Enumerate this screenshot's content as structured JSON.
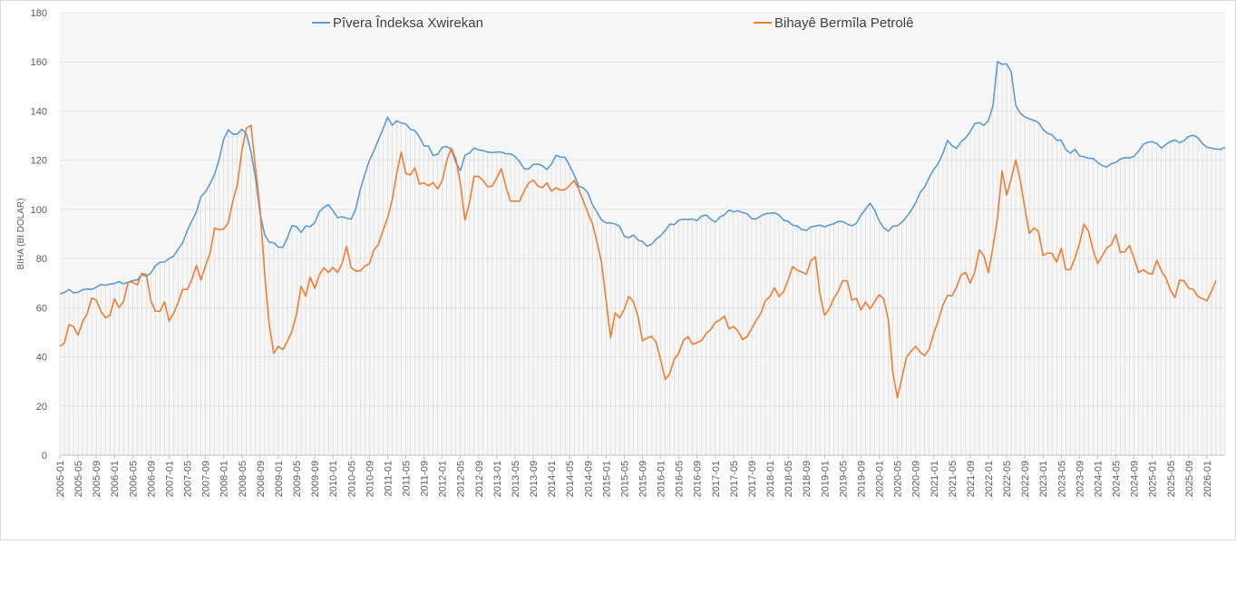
{
  "chart_data": {
    "type": "line",
    "ylabel": "BIHA (BI DOLAR)",
    "ylim": [
      0,
      180
    ],
    "yticks": [
      0,
      20,
      40,
      60,
      80,
      100,
      120,
      140,
      160,
      180
    ],
    "x_tick_labels": [
      "2005-01",
      "2005-05",
      "2005-09",
      "2006-01",
      "2006-05",
      "2006-09",
      "2007-01",
      "2007-05",
      "2007-09",
      "2008-01",
      "2008-05",
      "2008-09",
      "2009-01",
      "2009-05",
      "2009-09",
      "2010-01",
      "2010-05",
      "2010-09",
      "2011-01",
      "2011-05",
      "2011-09",
      "2012-01",
      "2012-05",
      "2012-09",
      "2013-01",
      "2013-05",
      "2013-09",
      "2014-01",
      "2014-05",
      "2014-09",
      "2015-01",
      "2015-05",
      "2015-09",
      "2016-01",
      "2016-05",
      "2016-09",
      "2017-01",
      "2017-05",
      "2017-09",
      "2018-01",
      "2018-05",
      "2018-09",
      "2019-01",
      "2019-05",
      "2019-09",
      "2020-01",
      "2020-05",
      "2020-09",
      "2021-01",
      "2021-05",
      "2021-09",
      "2022-01",
      "2022-05",
      "2022-09",
      "2023-01",
      "2023-05",
      "2023-09",
      "2024-01",
      "2024-05",
      "2024-09",
      "2025-01",
      "2025-05",
      "2025-09",
      "2026-01"
    ],
    "x_start": "2005-01",
    "x_step": "1 month",
    "legend_position": "top",
    "series": [
      {
        "name": "Pîvera Îndeksa Xwirekan",
        "color": "#5b9bd5",
        "values": [
          65.5,
          66.2,
          67.4,
          66.0,
          66.3,
          67.3,
          67.6,
          67.4,
          68.3,
          69.4,
          69.1,
          69.6,
          69.8,
          70.6,
          69.7,
          70.4,
          71.0,
          71.3,
          73.4,
          72.8,
          74.1,
          77.1,
          78.5,
          78.6,
          80.0,
          81.0,
          83.8,
          86.4,
          91.4,
          95.3,
          98.9,
          105.2,
          107.2,
          110.4,
          114.3,
          120.4,
          128.5,
          132.4,
          130.6,
          130.6,
          132.6,
          130.7,
          123.3,
          112.6,
          98.2,
          89.7,
          86.6,
          86.5,
          84.6,
          84.6,
          88.5,
          93.4,
          93.0,
          90.6,
          93.2,
          93.0,
          94.6,
          99.0,
          100.8,
          101.9,
          99.5,
          96.6,
          97.0,
          96.4,
          96.0,
          100.1,
          108.0,
          114.2,
          119.9,
          123.8,
          128.3,
          132.7,
          137.5,
          134.2,
          136.1,
          135.1,
          134.8,
          132.6,
          132.0,
          129.4,
          125.9,
          125.7,
          121.9,
          122.4,
          125.2,
          125.6,
          124.3,
          119.0,
          115.8,
          122.0,
          122.9,
          125.0,
          124.2,
          123.9,
          123.3,
          123.1,
          123.3,
          123.3,
          122.6,
          122.6,
          121.5,
          119.4,
          116.5,
          116.4,
          118.3,
          118.4,
          117.8,
          116.2,
          118.5,
          122.0,
          121.3,
          121.1,
          117.8,
          114.0,
          109.4,
          108.7,
          106.8,
          101.9,
          98.9,
          95.7,
          94.5,
          94.4,
          94.1,
          93.0,
          89.1,
          88.4,
          89.6,
          87.5,
          86.9,
          85.0,
          85.8,
          87.9,
          89.3,
          91.4,
          94.0,
          93.8,
          95.6,
          96.0,
          95.8,
          96.1,
          95.4,
          97.3,
          97.7,
          96.0,
          94.8,
          96.9,
          97.8,
          99.7,
          99.0,
          99.4,
          98.7,
          98.2,
          96.2,
          96.1,
          97.3,
          98.2,
          98.4,
          98.6,
          97.7,
          95.6,
          95.1,
          93.6,
          93.2,
          91.8,
          91.4,
          92.8,
          93.2,
          93.6,
          92.8,
          93.6,
          94.1,
          95.1,
          95.0,
          94.0,
          93.3,
          94.3,
          97.6,
          100.1,
          102.5,
          99.7,
          95.3,
          92.5,
          91.1,
          93.1,
          93.4,
          94.7,
          96.9,
          99.4,
          102.7,
          106.8,
          109.1,
          113.0,
          116.3,
          118.7,
          122.8,
          128.1,
          125.9,
          124.8,
          127.5,
          129.1,
          131.6,
          134.9,
          135.3,
          134.1,
          136.2,
          142.1,
          160.1,
          159.0,
          159.2,
          156.0,
          142.3,
          139.1,
          137.6,
          136.8,
          136.2,
          135.3,
          132.5,
          130.9,
          130.3,
          128.1,
          128.1,
          124.4,
          122.8,
          124.4,
          121.8,
          121.4,
          120.8,
          120.7,
          119.1,
          117.8,
          117.2,
          118.6,
          119.1,
          120.5,
          121.0,
          120.9,
          121.6,
          123.7,
          126.4,
          127.3,
          127.5,
          126.8,
          124.9,
          126.4,
          127.6,
          128.2,
          127.1,
          128.0,
          129.7,
          130.1,
          129.2,
          126.8,
          125.3,
          124.9,
          124.5,
          124.4,
          125.3
        ]
      },
      {
        "name": "Bihayê Bermîla Petrolê",
        "color": "#ed7d31",
        "values": [
          44.3,
          45.6,
          53.1,
          52.3,
          48.8,
          54.3,
          57.5,
          63.9,
          63.1,
          58.6,
          55.9,
          56.9,
          63.6,
          60.0,
          62.5,
          70.3,
          70.4,
          69.2,
          74.0,
          73.5,
          62.8,
          58.6,
          58.5,
          62.4,
          54.5,
          57.8,
          62.1,
          67.5,
          67.4,
          71.4,
          77.2,
          71.3,
          77.0,
          82.2,
          92.3,
          91.7,
          92.0,
          94.5,
          103.3,
          110.0,
          123.9,
          133.1,
          134.1,
          116.6,
          99.8,
          73.8,
          53.0,
          41.4,
          44.3,
          42.9,
          46.4,
          50.4,
          57.4,
          68.7,
          64.6,
          72.4,
          67.8,
          73.3,
          76.2,
          74.3,
          76.4,
          74.3,
          77.9,
          84.9,
          76.3,
          74.9,
          75.0,
          76.9,
          77.8,
          83.5,
          85.8,
          91.4,
          96.4,
          103.8,
          114.4,
          123.2,
          114.6,
          114.0,
          116.9,
          110.3,
          110.8,
          109.6,
          110.9,
          108.3,
          111.6,
          119.7,
          124.9,
          120.5,
          110.5,
          95.6,
          102.8,
          113.4,
          113.4,
          111.7,
          109.1,
          109.5,
          112.9,
          116.5,
          109.3,
          103.3,
          103.3,
          103.4,
          107.4,
          110.7,
          111.9,
          109.5,
          108.8,
          110.8,
          107.4,
          108.8,
          107.8,
          108.0,
          109.7,
          111.8,
          108.2,
          103.4,
          98.6,
          94.3,
          86.8,
          78.4,
          63.2,
          47.8,
          57.9,
          55.8,
          59.4,
          64.6,
          62.4,
          56.6,
          46.5,
          47.6,
          48.4,
          45.9,
          38.7,
          30.8,
          33.2,
          39.1,
          41.6,
          46.7,
          48.2,
          45.1,
          45.8,
          46.7,
          49.5,
          51.1,
          54.0,
          55.0,
          56.6,
          51.4,
          52.3,
          50.5,
          47.0,
          48.3,
          51.4,
          54.9,
          57.6,
          62.9,
          64.5,
          68.1,
          64.5,
          66.5,
          71.2,
          76.7,
          75.2,
          74.5,
          73.5,
          79.1,
          80.6,
          65.4,
          56.9,
          59.4,
          63.6,
          66.7,
          71.0,
          70.9,
          63.0,
          63.8,
          59.1,
          62.3,
          59.5,
          62.5,
          65.3,
          63.6,
          55.1,
          33.7,
          23.3,
          31.5,
          39.9,
          42.2,
          44.3,
          41.9,
          40.5,
          43.2,
          49.7,
          54.8,
          61.0,
          65.0,
          64.8,
          68.3,
          73.3,
          74.4,
          70.0,
          74.5,
          83.5,
          81.1,
          74.2,
          84.7,
          96.4,
          115.6,
          105.8,
          112.3,
          120.1,
          111.9,
          100.5,
          90.2,
          92.4,
          91.0,
          81.2,
          82.3,
          82.0,
          78.5,
          84.2,
          75.5,
          75.4,
          80.1,
          85.9,
          94.0,
          91.1,
          83.4,
          77.9,
          81.1,
          84.3,
          85.6,
          89.8,
          82.5,
          82.8,
          85.3,
          80.0,
          74.3,
          75.4,
          74.1,
          73.6,
          79.3,
          75.0,
          72.1,
          67.1,
          64.1,
          71.2,
          70.9,
          67.9,
          67.4,
          64.6,
          63.6,
          62.8,
          66.6,
          71.0
        ]
      }
    ]
  }
}
